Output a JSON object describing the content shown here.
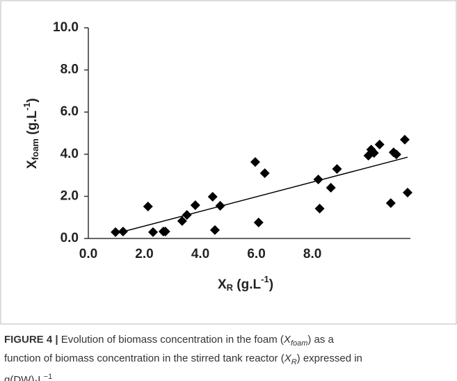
{
  "chart_data": {
    "type": "scatter",
    "ylabel": {
      "main": "X",
      "sub": "foam",
      "rest": " (g.L",
      "sup": "-1",
      "end": ")"
    },
    "xlabel": {
      "main": "X",
      "sub": "R",
      "rest": " (g.L",
      "sup": "-1",
      "end": ")"
    },
    "series": [
      {
        "name": "data",
        "color": "#000000",
        "x": [
          0.97,
          1.24,
          2.13,
          2.31,
          2.68,
          2.75,
          3.35,
          3.52,
          3.82,
          4.44,
          4.52,
          4.71,
          5.96,
          6.08,
          6.3,
          8.21,
          8.26,
          8.66,
          8.88,
          10.0,
          10.1,
          10.2,
          10.4,
          10.9,
          11.0,
          10.8,
          11.3,
          11.4
        ],
        "values": [
          0.3,
          0.33,
          1.52,
          0.3,
          0.33,
          0.33,
          0.83,
          1.12,
          1.58,
          1.98,
          0.4,
          1.55,
          3.63,
          0.76,
          3.1,
          2.8,
          1.42,
          2.41,
          3.3,
          3.93,
          4.22,
          4.06,
          4.46,
          4.09,
          3.99,
          1.68,
          4.69,
          2.18
        ]
      }
    ],
    "trendline": {
      "x": [
        0.97,
        11.4
      ],
      "values": [
        0.23,
        3.86
      ],
      "color": "#000000"
    },
    "xlim": [
      0,
      11.5
    ],
    "ylim": [
      0,
      10
    ],
    "xticks": [
      {
        "value": 0,
        "label": "0.0"
      },
      {
        "value": 2,
        "label": "2.0"
      },
      {
        "value": 4,
        "label": "4.0"
      },
      {
        "value": 6,
        "label": "6.0"
      },
      {
        "value": 8,
        "label": "8.0"
      }
    ],
    "yticks": [
      {
        "value": 0,
        "label": "0.0"
      },
      {
        "value": 2,
        "label": "2.0"
      },
      {
        "value": 4,
        "label": "4.0"
      },
      {
        "value": 6,
        "label": "6.0"
      },
      {
        "value": 8,
        "label": "8.0"
      },
      {
        "value": 10,
        "label": "10.0"
      }
    ],
    "grid": false
  },
  "caption": {
    "lines": [
      [
        {
          "t": "FIGURE 4 |",
          "s": "b"
        },
        {
          "t": " Evolution of biomass concentration in the foam (",
          "s": ""
        },
        {
          "t": "X",
          "s": "i"
        },
        {
          "t": "foam",
          "s": "isub"
        },
        {
          "t": ") as a",
          "s": ""
        }
      ],
      [
        {
          "t": "function of biomass concentration in the stirred tank reactor (",
          "s": ""
        },
        {
          "t": "X",
          "s": "i"
        },
        {
          "t": "R",
          "s": "isub"
        },
        {
          "t": ") expressed in",
          "s": ""
        }
      ],
      [
        {
          "t": "g(DW)·L",
          "s": ""
        },
        {
          "t": "−1",
          "s": "sup"
        },
        {
          "t": ".",
          "s": ""
        }
      ]
    ]
  }
}
